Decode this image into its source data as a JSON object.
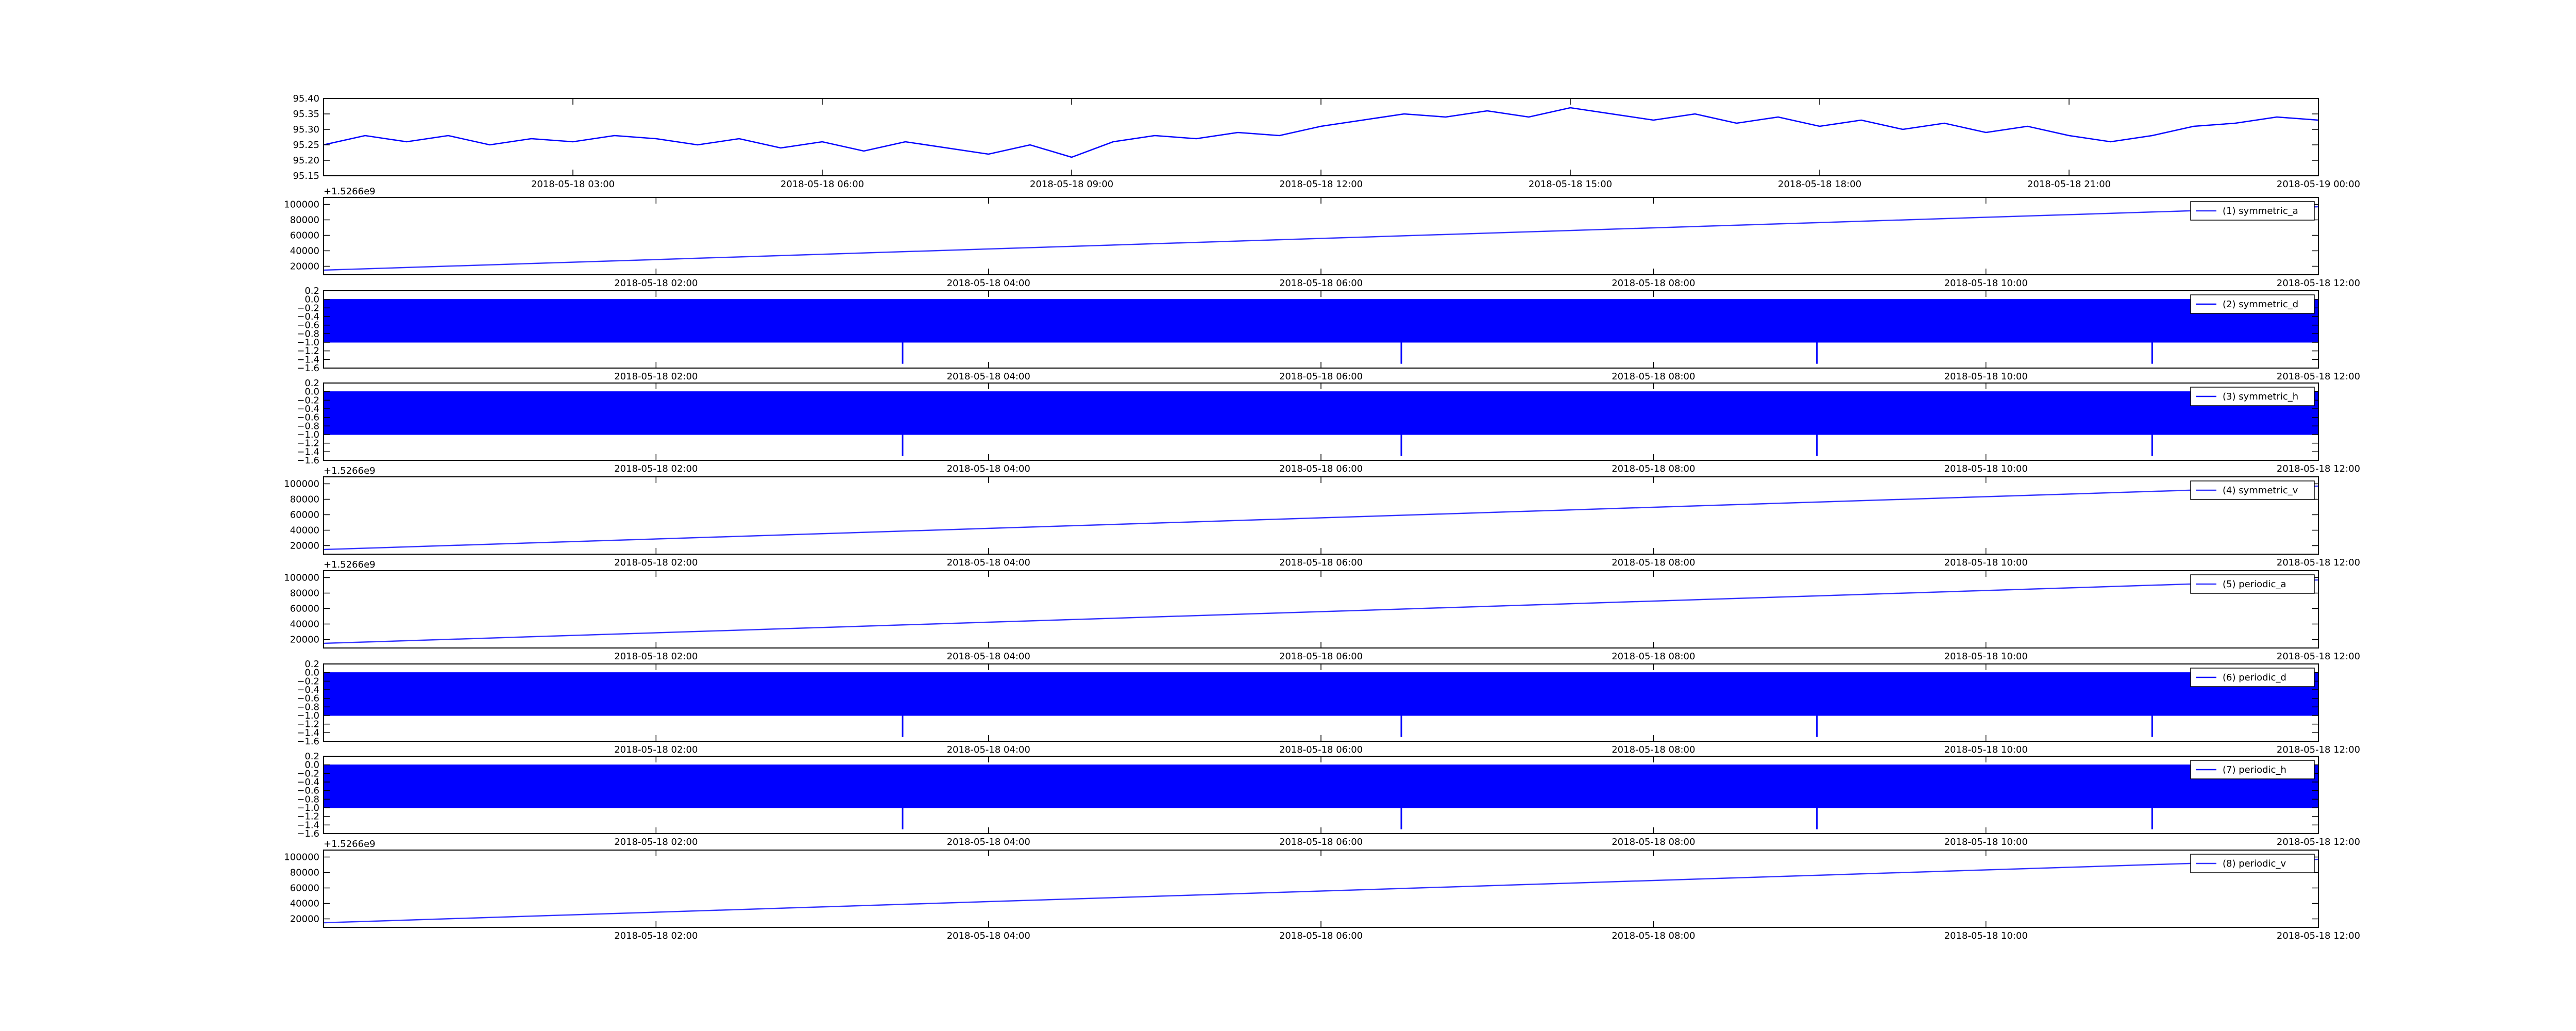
{
  "chart_data": [
    {
      "type": "line",
      "x": [
        "2018-05-18 00:00",
        "2018-05-18 00:30",
        "2018-05-18 01:00",
        "2018-05-18 01:30",
        "2018-05-18 02:00",
        "2018-05-18 02:30",
        "2018-05-18 03:00",
        "2018-05-18 03:30",
        "2018-05-18 04:00",
        "2018-05-18 04:30",
        "2018-05-18 05:00",
        "2018-05-18 05:30",
        "2018-05-18 06:00",
        "2018-05-18 06:30",
        "2018-05-18 07:00",
        "2018-05-18 07:30",
        "2018-05-18 08:00",
        "2018-05-18 08:30",
        "2018-05-18 09:00",
        "2018-05-18 09:30",
        "2018-05-18 10:00",
        "2018-05-18 10:30",
        "2018-05-18 11:00",
        "2018-05-18 11:30",
        "2018-05-18 12:00",
        "2018-05-18 12:30",
        "2018-05-18 13:00",
        "2018-05-18 13:30",
        "2018-05-18 14:00",
        "2018-05-18 14:30",
        "2018-05-18 15:00",
        "2018-05-18 15:30",
        "2018-05-18 16:00",
        "2018-05-18 16:30",
        "2018-05-18 17:00",
        "2018-05-18 17:30",
        "2018-05-18 18:00",
        "2018-05-18 18:30",
        "2018-05-18 19:00",
        "2018-05-18 19:30",
        "2018-05-18 20:00",
        "2018-05-18 20:30",
        "2018-05-18 21:00",
        "2018-05-18 21:30",
        "2018-05-18 22:00",
        "2018-05-18 22:30",
        "2018-05-18 23:00",
        "2018-05-18 23:30",
        "2018-05-19 00:00"
      ],
      "values": [
        95.25,
        95.28,
        95.26,
        95.28,
        95.25,
        95.27,
        95.26,
        95.28,
        95.27,
        95.25,
        95.27,
        95.24,
        95.26,
        95.23,
        95.26,
        95.24,
        95.22,
        95.25,
        95.21,
        95.26,
        95.28,
        95.27,
        95.29,
        95.28,
        95.31,
        95.33,
        95.35,
        95.34,
        95.36,
        95.34,
        95.37,
        95.35,
        95.33,
        95.35,
        95.32,
        95.34,
        95.31,
        95.33,
        95.3,
        95.32,
        95.29,
        95.31,
        95.28,
        95.26,
        95.28,
        95.31,
        95.32,
        95.34,
        95.33
      ],
      "color": "#0000ff",
      "xlim": [
        "2018-05-18 00:00",
        "2018-05-19 00:00"
      ],
      "xticks": [
        "2018-05-18 03:00",
        "2018-05-18 06:00",
        "2018-05-18 09:00",
        "2018-05-18 12:00",
        "2018-05-18 15:00",
        "2018-05-18 18:00",
        "2018-05-18 21:00",
        "2018-05-19 00:00"
      ],
      "ylim": [
        95.15,
        95.4
      ],
      "yticks": [
        95.15,
        {
          "value": 95.2,
          "label": "95.20"
        },
        95.25,
        {
          "value": 95.3,
          "label": "95.30"
        },
        95.35,
        {
          "value": 95.4,
          "label": "95.40"
        }
      ]
    },
    {
      "type": "line",
      "offset_label": "+1.5266e9",
      "x": [
        "2018-05-18 00:00",
        "2018-05-18 12:00"
      ],
      "series": [
        {
          "name": "(1) symmetric_a",
          "color": "#3333ff",
          "values": [
            15000,
            97000
          ]
        }
      ],
      "xlim": [
        "2018-05-18 00:00",
        "2018-05-18 12:00"
      ],
      "xticks": [
        "2018-05-18 02:00",
        "2018-05-18 04:00",
        "2018-05-18 06:00",
        "2018-05-18 08:00",
        "2018-05-18 10:00",
        "2018-05-18 12:00"
      ],
      "ylim": [
        9000,
        109000
      ],
      "yticks": [
        20000,
        40000,
        60000,
        80000,
        100000
      ]
    },
    {
      "type": "range",
      "x": [
        "2018-05-18 00:00",
        "2018-05-18 12:00"
      ],
      "series": [
        {
          "name": "(2) symmetric_d",
          "color": "#0000ff",
          "high": [
            0,
            0
          ],
          "low": [
            -1,
            -1
          ],
          "spike_x": [
            "2018-05-18 03:29",
            "2018-05-18 06:29",
            "2018-05-18 08:59",
            "2018-05-18 11:00"
          ],
          "spike_values": [
            -1.5,
            -1.5,
            -1.5,
            -1.5
          ]
        }
      ],
      "xlim": [
        "2018-05-18 00:00",
        "2018-05-18 12:00"
      ],
      "xticks": [
        "2018-05-18 02:00",
        "2018-05-18 04:00",
        "2018-05-18 06:00",
        "2018-05-18 08:00",
        "2018-05-18 10:00",
        "2018-05-18 12:00"
      ],
      "ylim": [
        -1.6,
        0.2
      ],
      "yticks": [
        {
          "value": -1.6,
          "label": "−1.6"
        },
        {
          "value": -1.4,
          "label": "−1.4"
        },
        {
          "value": -1.2,
          "label": "−1.2"
        },
        {
          "value": -1.0,
          "label": "−1.0"
        },
        {
          "value": -0.8,
          "label": "−0.8"
        },
        {
          "value": -0.6,
          "label": "−0.6"
        },
        {
          "value": -0.4,
          "label": "−0.4"
        },
        {
          "value": -0.2,
          "label": "−0.2"
        },
        {
          "value": 0,
          "label": "0.0"
        },
        0.2
      ]
    },
    {
      "type": "range",
      "x": [
        "2018-05-18 00:00",
        "2018-05-18 12:00"
      ],
      "series": [
        {
          "name": "(3) symmetric_h",
          "color": "#0000ff",
          "high": [
            0,
            0
          ],
          "low": [
            -1,
            -1
          ],
          "spike_x": [
            "2018-05-18 03:29",
            "2018-05-18 06:29",
            "2018-05-18 08:59",
            "2018-05-18 11:00"
          ],
          "spike_values": [
            -1.5,
            -1.5,
            -1.5,
            -1.5
          ]
        }
      ],
      "xlim": [
        "2018-05-18 00:00",
        "2018-05-18 12:00"
      ],
      "xticks": [
        "2018-05-18 02:00",
        "2018-05-18 04:00",
        "2018-05-18 06:00",
        "2018-05-18 08:00",
        "2018-05-18 10:00",
        "2018-05-18 12:00"
      ],
      "ylim": [
        -1.6,
        0.2
      ],
      "yticks": [
        {
          "value": -1.6,
          "label": "−1.6"
        },
        {
          "value": -1.4,
          "label": "−1.4"
        },
        {
          "value": -1.2,
          "label": "−1.2"
        },
        {
          "value": -1.0,
          "label": "−1.0"
        },
        {
          "value": -0.8,
          "label": "−0.8"
        },
        {
          "value": -0.6,
          "label": "−0.6"
        },
        {
          "value": -0.4,
          "label": "−0.4"
        },
        {
          "value": -0.2,
          "label": "−0.2"
        },
        {
          "value": 0,
          "label": "0.0"
        },
        0.2
      ]
    },
    {
      "type": "line",
      "offset_label": "+1.5266e9",
      "x": [
        "2018-05-18 00:00",
        "2018-05-18 12:00"
      ],
      "series": [
        {
          "name": "(4) symmetric_v",
          "color": "#3333ff",
          "values": [
            15000,
            97000
          ]
        }
      ],
      "xlim": [
        "2018-05-18 00:00",
        "2018-05-18 12:00"
      ],
      "xticks": [
        "2018-05-18 02:00",
        "2018-05-18 04:00",
        "2018-05-18 06:00",
        "2018-05-18 08:00",
        "2018-05-18 10:00",
        "2018-05-18 12:00"
      ],
      "ylim": [
        9000,
        109000
      ],
      "yticks": [
        20000,
        40000,
        60000,
        80000,
        100000
      ]
    },
    {
      "type": "line",
      "offset_label": "+1.5266e9",
      "x": [
        "2018-05-18 00:00",
        "2018-05-18 12:00"
      ],
      "series": [
        {
          "name": "(5) periodic_a",
          "color": "#3333ff",
          "values": [
            15000,
            97000
          ]
        }
      ],
      "xlim": [
        "2018-05-18 00:00",
        "2018-05-18 12:00"
      ],
      "xticks": [
        "2018-05-18 02:00",
        "2018-05-18 04:00",
        "2018-05-18 06:00",
        "2018-05-18 08:00",
        "2018-05-18 10:00",
        "2018-05-18 12:00"
      ],
      "ylim": [
        9000,
        109000
      ],
      "yticks": [
        20000,
        40000,
        60000,
        80000,
        100000
      ]
    },
    {
      "type": "range",
      "x": [
        "2018-05-18 00:00",
        "2018-05-18 12:00"
      ],
      "series": [
        {
          "name": "(6) periodic_d",
          "color": "#0000ff",
          "high": [
            0,
            0
          ],
          "low": [
            -1,
            -1
          ],
          "spike_x": [
            "2018-05-18 03:29",
            "2018-05-18 06:29",
            "2018-05-18 08:59",
            "2018-05-18 11:00"
          ],
          "spike_values": [
            -1.5,
            -1.5,
            -1.5,
            -1.5
          ]
        }
      ],
      "xlim": [
        "2018-05-18 00:00",
        "2018-05-18 12:00"
      ],
      "xticks": [
        "2018-05-18 02:00",
        "2018-05-18 04:00",
        "2018-05-18 06:00",
        "2018-05-18 08:00",
        "2018-05-18 10:00",
        "2018-05-18 12:00"
      ],
      "ylim": [
        -1.6,
        0.2
      ],
      "yticks": [
        {
          "value": -1.6,
          "label": "−1.6"
        },
        {
          "value": -1.4,
          "label": "−1.4"
        },
        {
          "value": -1.2,
          "label": "−1.2"
        },
        {
          "value": -1.0,
          "label": "−1.0"
        },
        {
          "value": -0.8,
          "label": "−0.8"
        },
        {
          "value": -0.6,
          "label": "−0.6"
        },
        {
          "value": -0.4,
          "label": "−0.4"
        },
        {
          "value": -0.2,
          "label": "−0.2"
        },
        {
          "value": 0,
          "label": "0.0"
        },
        0.2
      ]
    },
    {
      "type": "range",
      "x": [
        "2018-05-18 00:00",
        "2018-05-18 12:00"
      ],
      "series": [
        {
          "name": "(7) periodic_h",
          "color": "#0000ff",
          "high": [
            0,
            0
          ],
          "low": [
            -1,
            -1
          ],
          "spike_x": [
            "2018-05-18 03:29",
            "2018-05-18 06:29",
            "2018-05-18 08:59",
            "2018-05-18 11:00"
          ],
          "spike_values": [
            -1.5,
            -1.5,
            -1.5,
            -1.5
          ]
        }
      ],
      "xlim": [
        "2018-05-18 00:00",
        "2018-05-18 12:00"
      ],
      "xticks": [
        "2018-05-18 02:00",
        "2018-05-18 04:00",
        "2018-05-18 06:00",
        "2018-05-18 08:00",
        "2018-05-18 10:00",
        "2018-05-18 12:00"
      ],
      "ylim": [
        -1.6,
        0.2
      ],
      "yticks": [
        {
          "value": -1.6,
          "label": "−1.6"
        },
        {
          "value": -1.4,
          "label": "−1.4"
        },
        {
          "value": -1.2,
          "label": "−1.2"
        },
        {
          "value": -1.0,
          "label": "−1.0"
        },
        {
          "value": -0.8,
          "label": "−0.8"
        },
        {
          "value": -0.6,
          "label": "−0.6"
        },
        {
          "value": -0.4,
          "label": "−0.4"
        },
        {
          "value": -0.2,
          "label": "−0.2"
        },
        {
          "value": 0,
          "label": "0.0"
        },
        0.2
      ]
    },
    {
      "type": "line",
      "offset_label": "+1.5266e9",
      "x": [
        "2018-05-18 00:00",
        "2018-05-18 12:00"
      ],
      "series": [
        {
          "name": "(8) periodic_v",
          "color": "#3333ff",
          "values": [
            15000,
            97000
          ]
        }
      ],
      "xlim": [
        "2018-05-18 00:00",
        "2018-05-18 12:00"
      ],
      "xticks": [
        "2018-05-18 02:00",
        "2018-05-18 04:00",
        "2018-05-18 06:00",
        "2018-05-18 08:00",
        "2018-05-18 10:00",
        "2018-05-18 12:00"
      ],
      "ylim": [
        9000,
        109000
      ],
      "yticks": [
        20000,
        40000,
        60000,
        80000,
        100000
      ]
    }
  ]
}
